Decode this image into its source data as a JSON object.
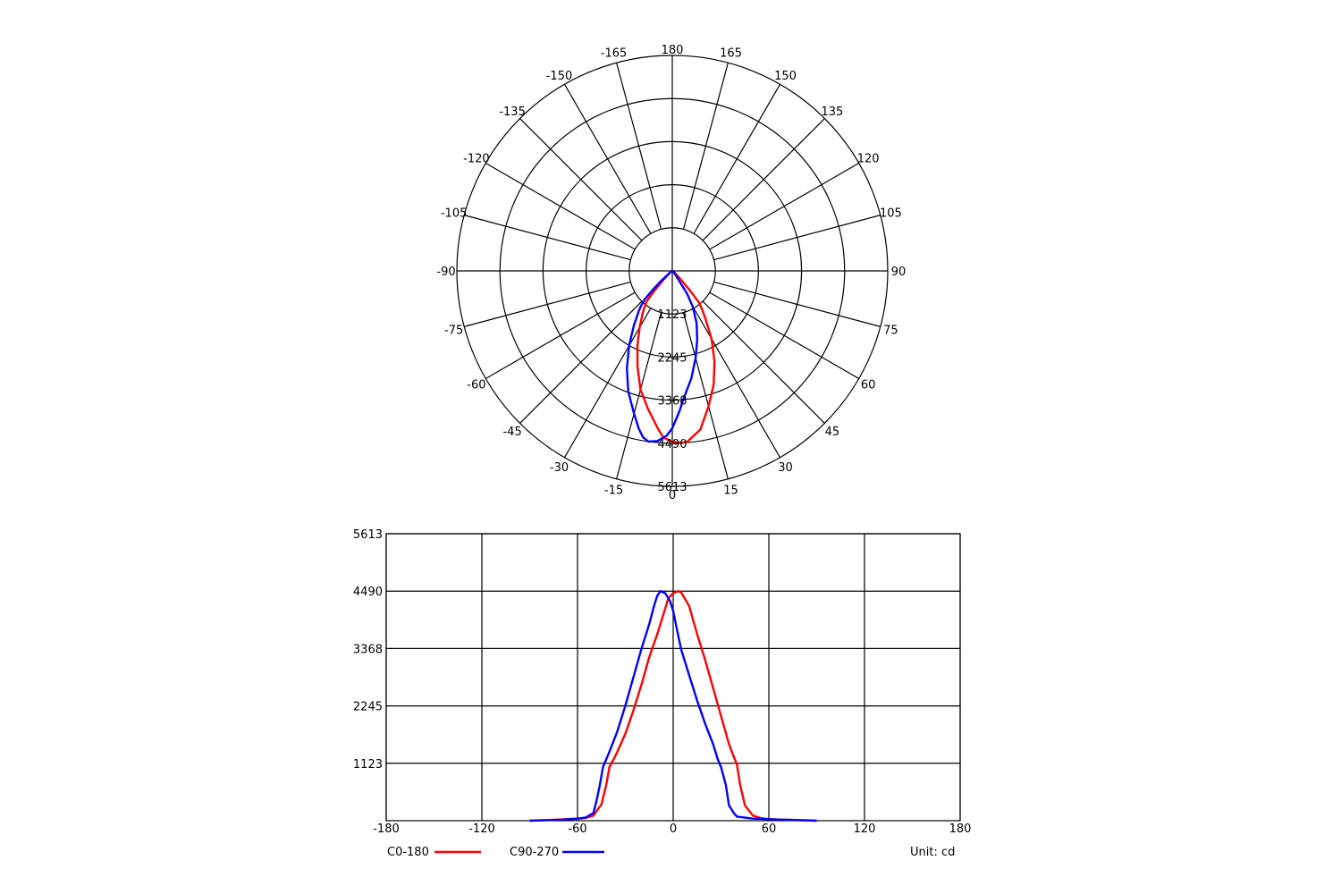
{
  "chart_data": [
    {
      "type": "polar",
      "angle_labels": [
        "180",
        "165",
        "150",
        "135",
        "120",
        "105",
        "90",
        "75",
        "60",
        "45",
        "30",
        "15",
        "0",
        "-15",
        "-30",
        "-45",
        "-60",
        "-75",
        "-90",
        "-105",
        "-120",
        "-135",
        "-150",
        "-165"
      ],
      "angle_ticks": [
        180,
        165,
        150,
        135,
        120,
        105,
        90,
        75,
        60,
        45,
        30,
        15,
        0,
        -15,
        -30,
        -45,
        -60,
        -75,
        -90,
        -105,
        -120,
        -135,
        -150,
        -165
      ],
      "radial_ticks": [
        1123,
        2245,
        3368,
        4490,
        5613
      ],
      "radial_labels": [
        "1123",
        "2245",
        "3368",
        "4490",
        "5613"
      ],
      "rmax": 5613,
      "series": [
        {
          "name": "C0-180",
          "color": "#ff0000",
          "points": [
            [
              -90,
              0
            ],
            [
              -80,
              10
            ],
            [
              -70,
              25
            ],
            [
              -60,
              40
            ],
            [
              -55,
              55
            ],
            [
              -50,
              100
            ],
            [
              -45,
              320
            ],
            [
              -42,
              700
            ],
            [
              -40,
              1050
            ],
            [
              -37,
              1220
            ],
            [
              -35,
              1350
            ],
            [
              -30,
              1700
            ],
            [
              -25,
              2150
            ],
            [
              -20,
              2650
            ],
            [
              -15,
              3200
            ],
            [
              -10,
              3650
            ],
            [
              -5,
              4150
            ],
            [
              -3,
              4350
            ],
            [
              0,
              4450
            ],
            [
              3,
              4490
            ],
            [
              5,
              4470
            ],
            [
              10,
              4200
            ],
            [
              15,
              3650
            ],
            [
              20,
              3150
            ],
            [
              25,
              2600
            ],
            [
              30,
              2050
            ],
            [
              35,
              1500
            ],
            [
              38,
              1250
            ],
            [
              40,
              1100
            ],
            [
              42,
              700
            ],
            [
              45,
              300
            ],
            [
              50,
              100
            ],
            [
              55,
              50
            ],
            [
              60,
              30
            ],
            [
              70,
              20
            ],
            [
              80,
              10
            ],
            [
              90,
              0
            ]
          ]
        },
        {
          "name": "C90-270",
          "color": "#0000ff",
          "points": [
            [
              -90,
              0
            ],
            [
              -80,
              10
            ],
            [
              -70,
              20
            ],
            [
              -60,
              40
            ],
            [
              -55,
              60
            ],
            [
              -50,
              150
            ],
            [
              -48,
              400
            ],
            [
              -46,
              700
            ],
            [
              -44,
              1050
            ],
            [
              -42,
              1200
            ],
            [
              -40,
              1350
            ],
            [
              -35,
              1750
            ],
            [
              -30,
              2250
            ],
            [
              -25,
              2800
            ],
            [
              -20,
              3350
            ],
            [
              -15,
              3850
            ],
            [
              -12,
              4200
            ],
            [
              -10,
              4400
            ],
            [
              -8,
              4490
            ],
            [
              -5,
              4450
            ],
            [
              -2,
              4300
            ],
            [
              0,
              4100
            ],
            [
              3,
              3650
            ],
            [
              5,
              3350
            ],
            [
              10,
              2850
            ],
            [
              15,
              2350
            ],
            [
              20,
              1900
            ],
            [
              25,
              1500
            ],
            [
              28,
              1200
            ],
            [
              30,
              1050
            ],
            [
              33,
              700
            ],
            [
              35,
              300
            ],
            [
              38,
              150
            ],
            [
              40,
              80
            ],
            [
              50,
              40
            ],
            [
              60,
              30
            ],
            [
              70,
              20
            ],
            [
              80,
              10
            ],
            [
              90,
              0
            ]
          ]
        }
      ]
    },
    {
      "type": "line",
      "x_ticks": [
        -180,
        -120,
        -60,
        0,
        60,
        120,
        180
      ],
      "x_tick_labels": [
        "-180",
        "-120",
        "-60",
        "0",
        "60",
        "120",
        "180"
      ],
      "y_ticks": [
        1123,
        2245,
        3368,
        4490,
        5613
      ],
      "y_tick_labels": [
        "1123",
        "2245",
        "3368",
        "4490",
        "5613"
      ],
      "xlim": [
        -180,
        180
      ],
      "ylim": [
        0,
        5613
      ],
      "grid": true,
      "series_ref": [
        "C0-180",
        "C90-270"
      ]
    }
  ],
  "legend": {
    "items": [
      {
        "label": "C0-180",
        "color": "#ff0000"
      },
      {
        "label": "C90-270",
        "color": "#0000ff"
      }
    ],
    "unit_label": "Unit: cd"
  }
}
